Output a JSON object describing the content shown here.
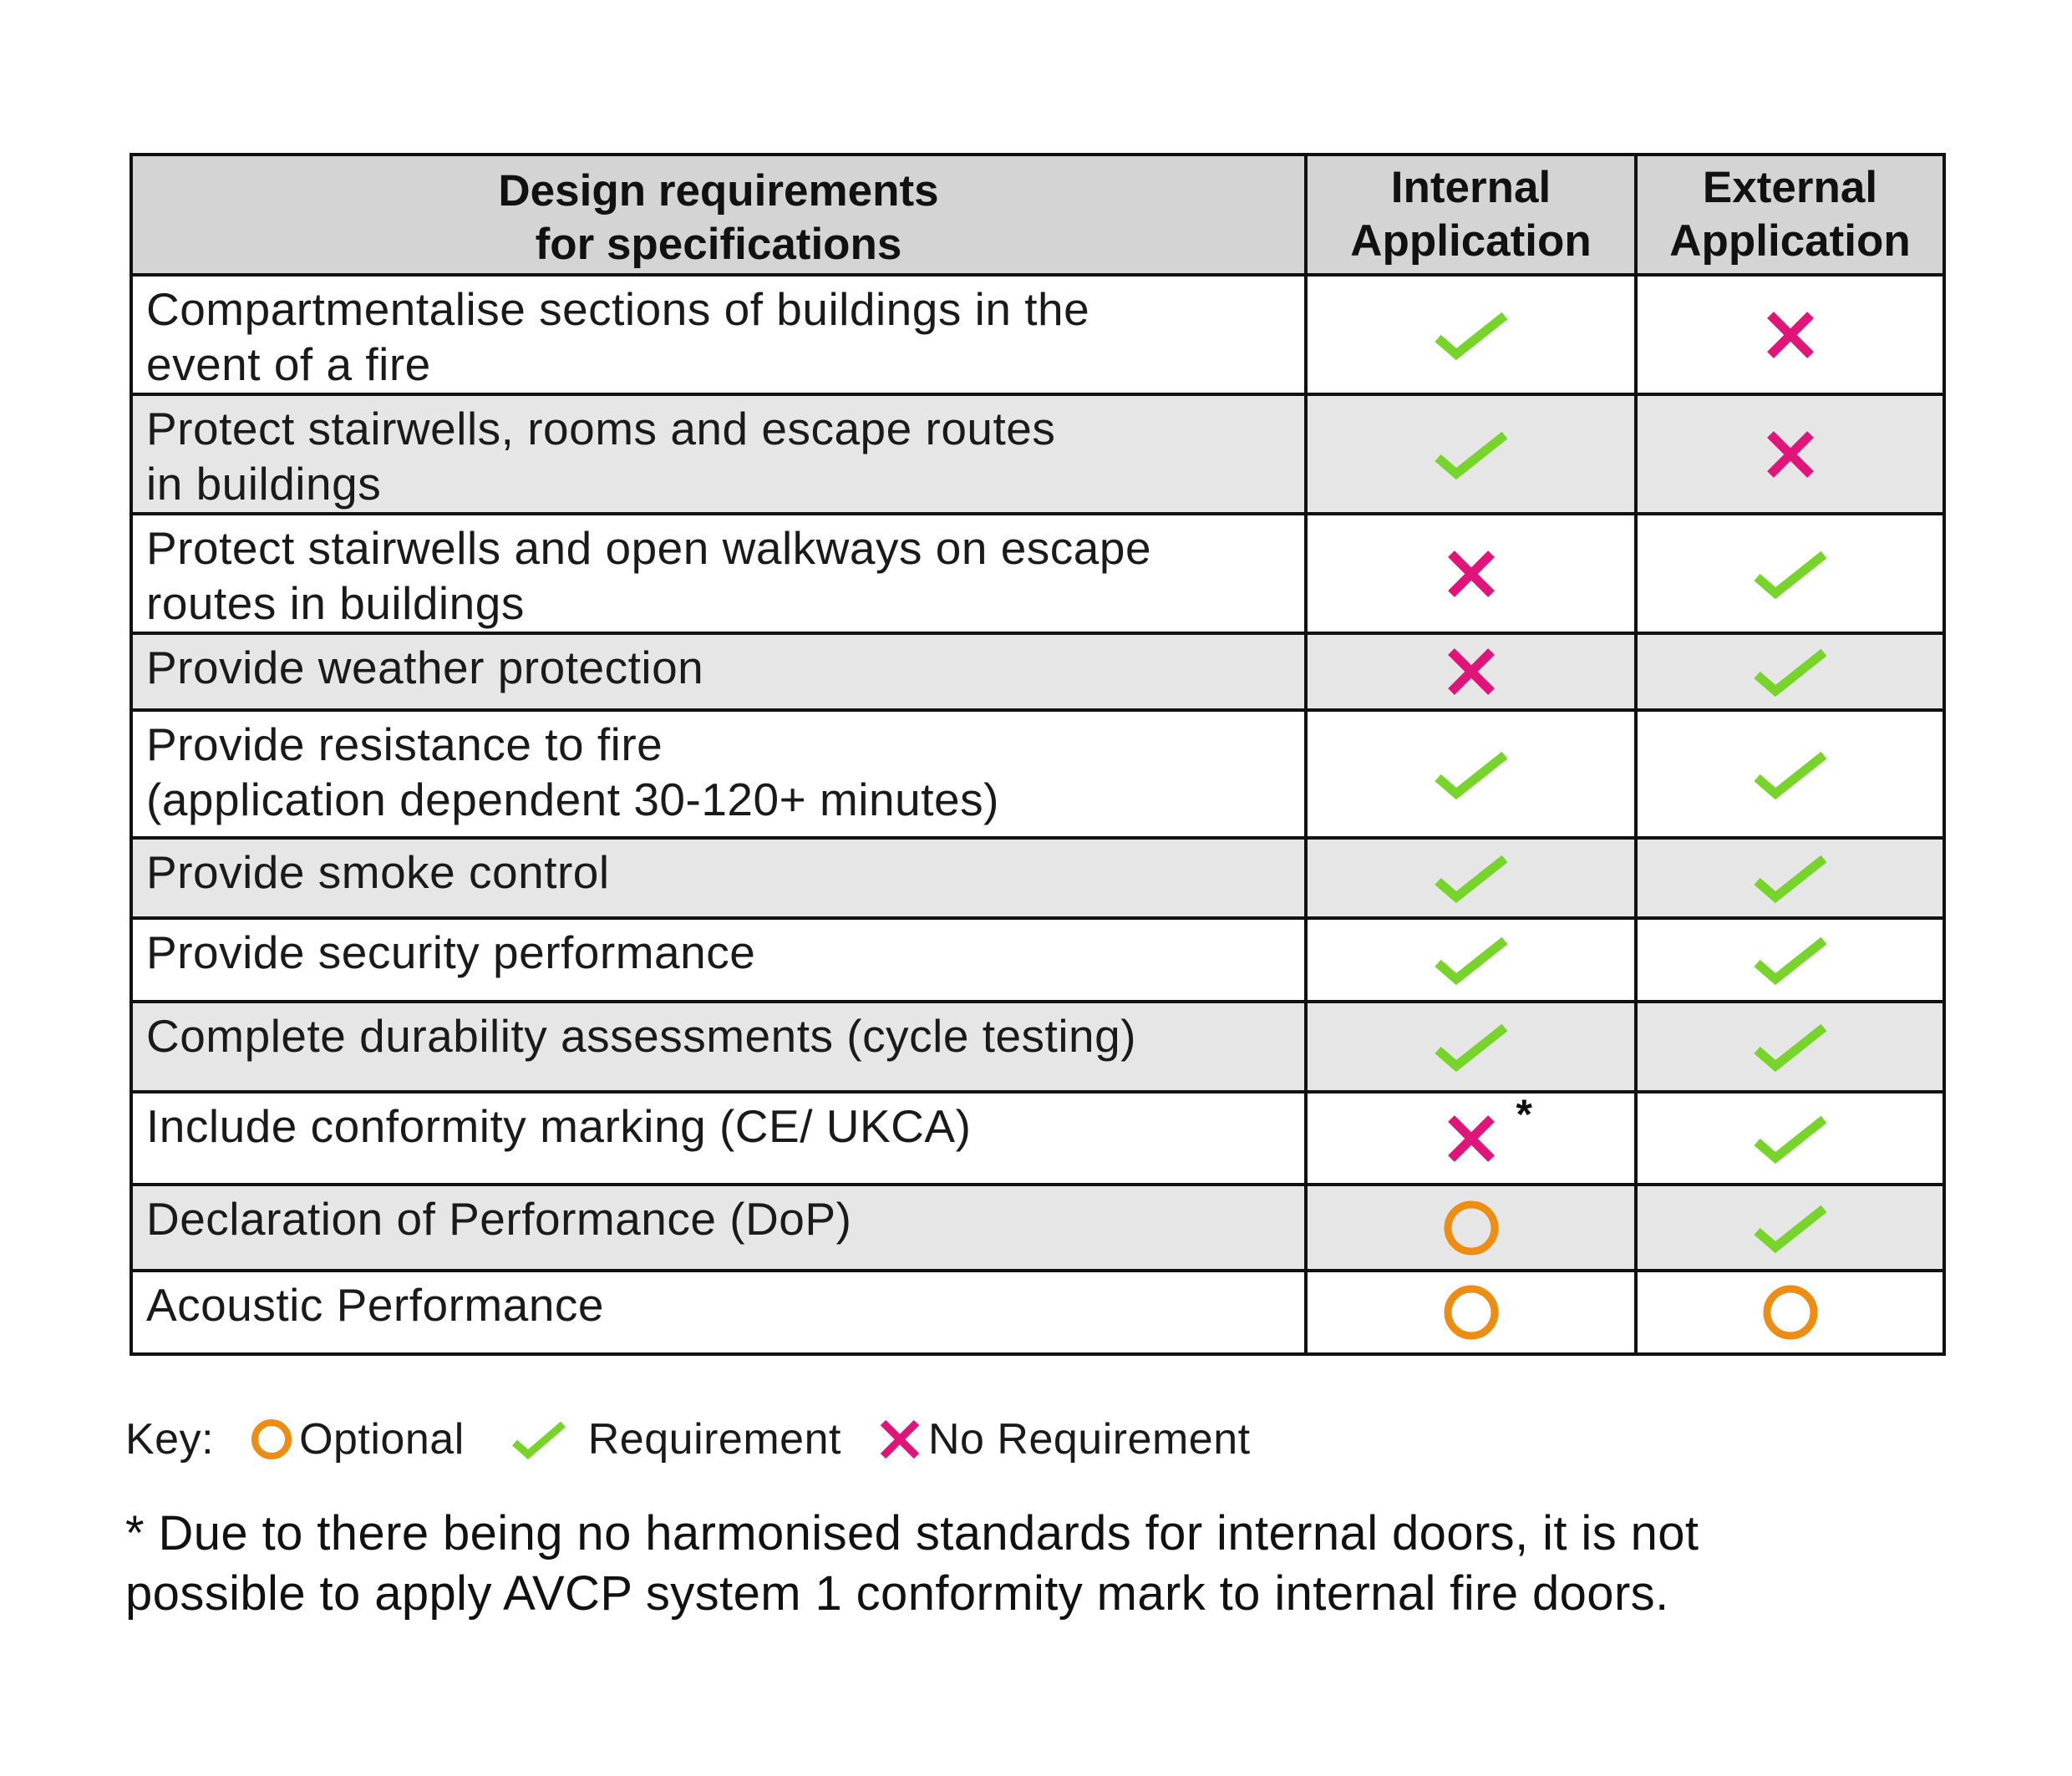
{
  "colors": {
    "check": "#77d42a",
    "cross": "#e0157a",
    "optional": "#ee8d13",
    "header_bg": "#d4d4d4",
    "shaded_row_bg": "#e6e6e6"
  },
  "table": {
    "headers": {
      "requirement_line1": "Design requirements",
      "requirement_line2": "for specifications",
      "internal_line1": "Internal",
      "internal_line2": "Application",
      "external_line1": "External",
      "external_line2": "Application"
    },
    "rows": [
      {
        "line1": "Compartmentalise sections of buildings in the",
        "line2": "event of a fire",
        "internal": "check",
        "external": "cross",
        "shaded": false
      },
      {
        "line1": "Protect stairwells, rooms and escape routes",
        "line2": "in buildings",
        "internal": "check",
        "external": "cross",
        "shaded": true
      },
      {
        "line1": "Protect stairwells and open walkways on escape",
        "line2": "routes in buildings",
        "internal": "cross",
        "external": "check",
        "shaded": false
      },
      {
        "line1": "Provide weather protection",
        "line2": "",
        "internal": "cross",
        "external": "check",
        "shaded": true
      },
      {
        "line1": "Provide resistance to fire",
        "line2": "(application dependent 30-120+ minutes)",
        "internal": "check",
        "external": "check",
        "shaded": false
      },
      {
        "line1": "Provide smoke control",
        "line2": "",
        "internal": "check",
        "external": "check",
        "shaded": true
      },
      {
        "line1": "Provide security performance",
        "line2": "",
        "internal": "check",
        "external": "check",
        "shaded": false
      },
      {
        "line1": "Complete durability assessments (cycle testing)",
        "line2": "",
        "internal": "check",
        "external": "check",
        "shaded": true
      },
      {
        "line1": "Include conformity marking (CE/ UKCA)",
        "line2": "",
        "internal": "cross",
        "internal_note": "*",
        "external": "check",
        "shaded": false
      },
      {
        "line1": "Declaration of Performance (DoP)",
        "line2": "",
        "internal": "optional",
        "external": "check",
        "shaded": true
      },
      {
        "line1": "Acoustic Performance",
        "line2": "",
        "internal": "optional",
        "external": "optional",
        "shaded": false
      }
    ]
  },
  "key": {
    "title": "Key:",
    "optional_label": "Optional",
    "requirement_label": "Requirement",
    "no_requirement_label": "No Requirement"
  },
  "footnote": {
    "line1": "* Due to there being no harmonised standards for internal doors, it is not",
    "line2": "possible to apply AVCP system 1 conformity mark to internal fire doors."
  }
}
